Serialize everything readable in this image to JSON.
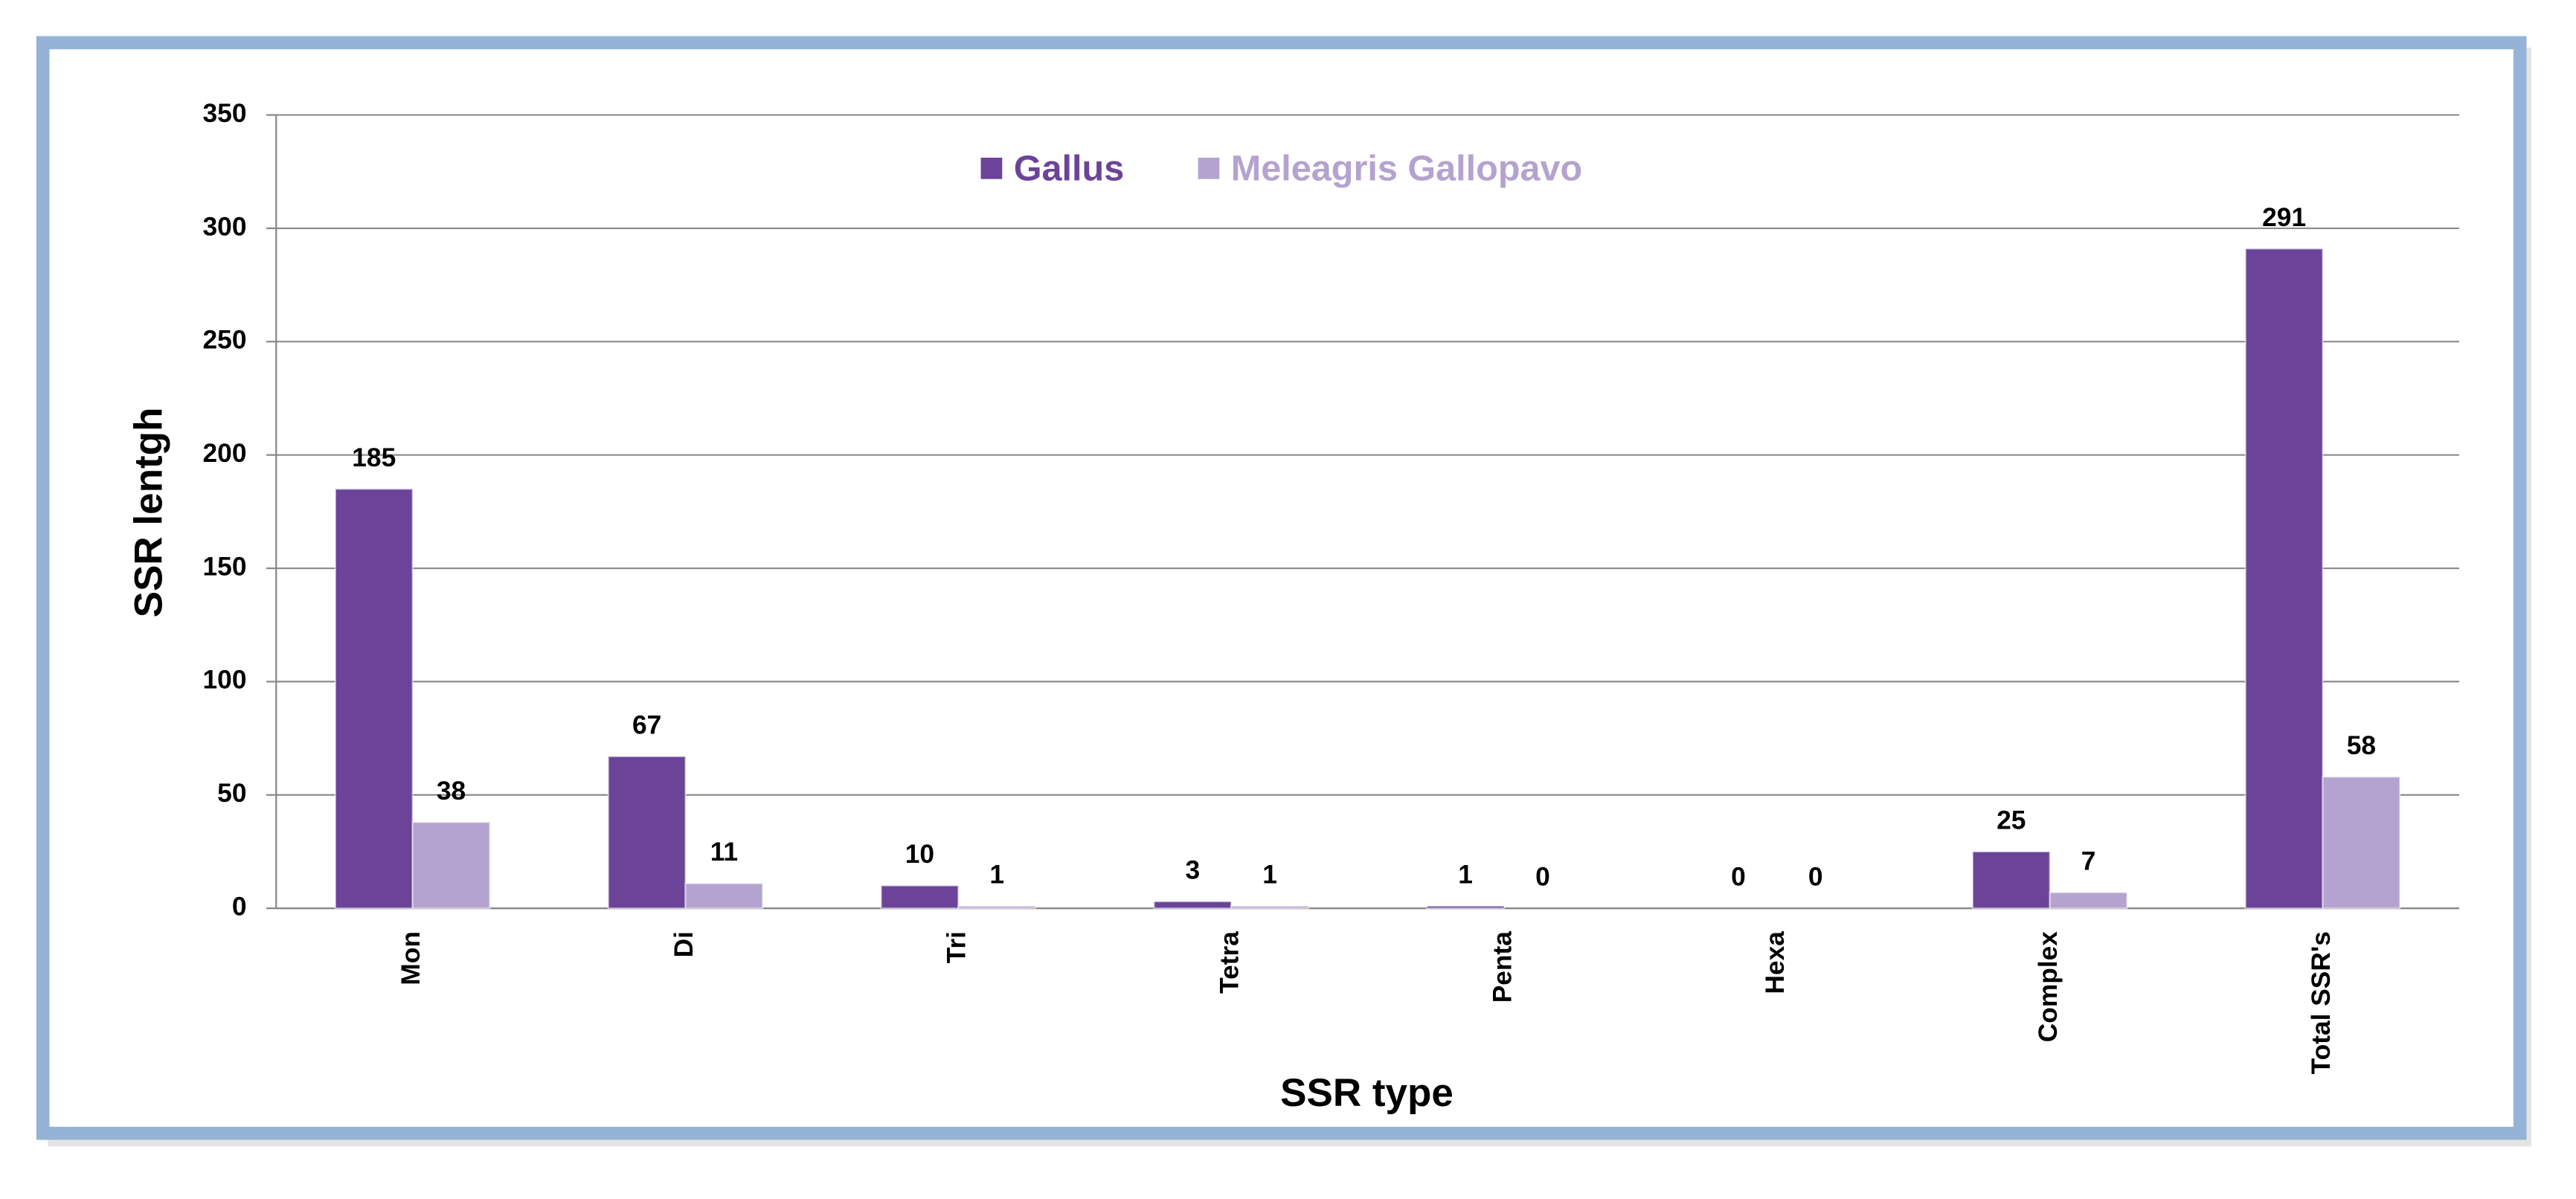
{
  "chart_data": {
    "type": "bar",
    "x_label": "SSR type",
    "y_label": "SSR lentgh",
    "categories": [
      "Mon",
      "Di",
      "Tri",
      "Tetra",
      "Penta",
      "Hexa",
      "Complex",
      "Total SSR's"
    ],
    "series": [
      {
        "name": "Gallus",
        "color": "#6b4499",
        "values": [
          185,
          67,
          10,
          3,
          1,
          0,
          25,
          291
        ]
      },
      {
        "name": "Meleagris Gallopavo",
        "color": "#b4a3cf",
        "values": [
          38,
          11,
          1,
          1,
          0,
          0,
          7,
          58
        ]
      }
    ],
    "ylim": [
      0,
      350
    ],
    "yticks": [
      0,
      50,
      100,
      150,
      200,
      250,
      300,
      350
    ],
    "grid": true,
    "legend": "top"
  }
}
